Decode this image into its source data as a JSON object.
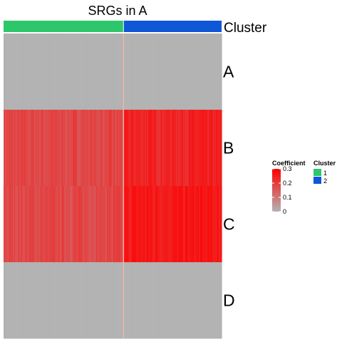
{
  "chart_data": {
    "type": "heatmap",
    "title": "SRGs in A",
    "rows": [
      "A",
      "B",
      "C",
      "D"
    ],
    "annotation": {
      "name": "Cluster",
      "levels": [
        {
          "label": "1",
          "color": "#2ec66a"
        },
        {
          "label": "2",
          "color": "#0f57d6"
        }
      ],
      "cluster_fraction": [
        0.55,
        0.45
      ]
    },
    "row_values": {
      "cluster_1": [
        0.0,
        0.18,
        0.18,
        0.0
      ],
      "cluster_2": [
        0.0,
        0.24,
        0.26,
        0.0
      ]
    },
    "color_scale": {
      "title": "Coefficient",
      "min": 0,
      "max": 0.3,
      "ticks": [
        0,
        0.1,
        0.2,
        0.3
      ],
      "low_color": "#b3b3b3",
      "high_color": "#ff0000"
    },
    "column_count_estimate": 300,
    "legend_placement": "right"
  }
}
